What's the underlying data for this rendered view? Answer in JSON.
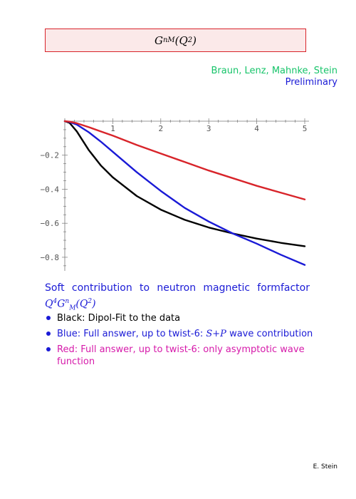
{
  "title": {
    "base": "G",
    "sup": "n",
    "sub": "M",
    "arg": "(Q",
    "arg_sup": "2",
    "arg_close": ")"
  },
  "authors": "Braun, Lenz, Mahnke, Stein",
  "status": "Preliminary",
  "caption": {
    "words": [
      "Soft",
      "contribution",
      "to",
      "neutron",
      "magnetic",
      "formfactor"
    ],
    "formula": {
      "q": "Q",
      "q_sup": "4",
      "g": "G",
      "g_sup": "n",
      "g_sub": "M",
      "arg": "(Q",
      "arg_sup": "2",
      "arg_close": ")"
    }
  },
  "bullets": [
    {
      "text": "Black: Dipol-Fit to the data",
      "color": "#000000"
    },
    {
      "text": "Blue: Full answer, up to twist-6:",
      "math": "S+P",
      "tail": "wave contribution",
      "color": "#1a1ad6"
    },
    {
      "text": "Red: Full answer, up to twist-6: only asymptotic wave function",
      "color": "#d61aaa"
    }
  ],
  "footer": "E. Stein",
  "chart_data": {
    "type": "line",
    "xlim": [
      0,
      5
    ],
    "ylim": [
      -0.88,
      0
    ],
    "xticks": [
      {
        "value": 1,
        "label": "1"
      },
      {
        "value": 2,
        "label": "2"
      },
      {
        "value": 3,
        "label": "3"
      },
      {
        "value": 4,
        "label": "4"
      },
      {
        "value": 5,
        "label": "5"
      }
    ],
    "yticks": [
      {
        "value": -0.2,
        "label": "−0.2"
      },
      {
        "value": -0.4,
        "label": "−0.4"
      },
      {
        "value": -0.6,
        "label": "−0.6"
      },
      {
        "value": -0.8,
        "label": "−0.8"
      }
    ],
    "grid": false,
    "series": [
      {
        "color": "#000000",
        "x": [
          0,
          0.1,
          0.25,
          0.5,
          0.75,
          1.0,
          1.5,
          2.0,
          2.5,
          3.0,
          3.5,
          4.0,
          4.5,
          5.0
        ],
        "y": [
          0,
          -0.01,
          -0.06,
          -0.17,
          -0.26,
          -0.33,
          -0.44,
          -0.52,
          -0.58,
          -0.625,
          -0.66,
          -0.69,
          -0.715,
          -0.735
        ]
      },
      {
        "color": "#1a1ad6",
        "x": [
          0,
          0.1,
          0.25,
          0.5,
          0.75,
          1.0,
          1.5,
          2.0,
          2.5,
          3.0,
          3.5,
          4.0,
          4.5,
          5.0
        ],
        "y": [
          0,
          -0.005,
          -0.02,
          -0.065,
          -0.12,
          -0.18,
          -0.3,
          -0.41,
          -0.51,
          -0.59,
          -0.66,
          -0.72,
          -0.785,
          -0.845
        ]
      },
      {
        "color": "#d8242a",
        "x": [
          0,
          0.1,
          0.25,
          0.5,
          0.75,
          1.0,
          1.5,
          2.0,
          2.5,
          3.0,
          3.5,
          4.0,
          4.5,
          5.0
        ],
        "y": [
          0,
          -0.003,
          -0.012,
          -0.035,
          -0.06,
          -0.085,
          -0.14,
          -0.19,
          -0.24,
          -0.29,
          -0.335,
          -0.38,
          -0.42,
          -0.46
        ]
      }
    ]
  }
}
